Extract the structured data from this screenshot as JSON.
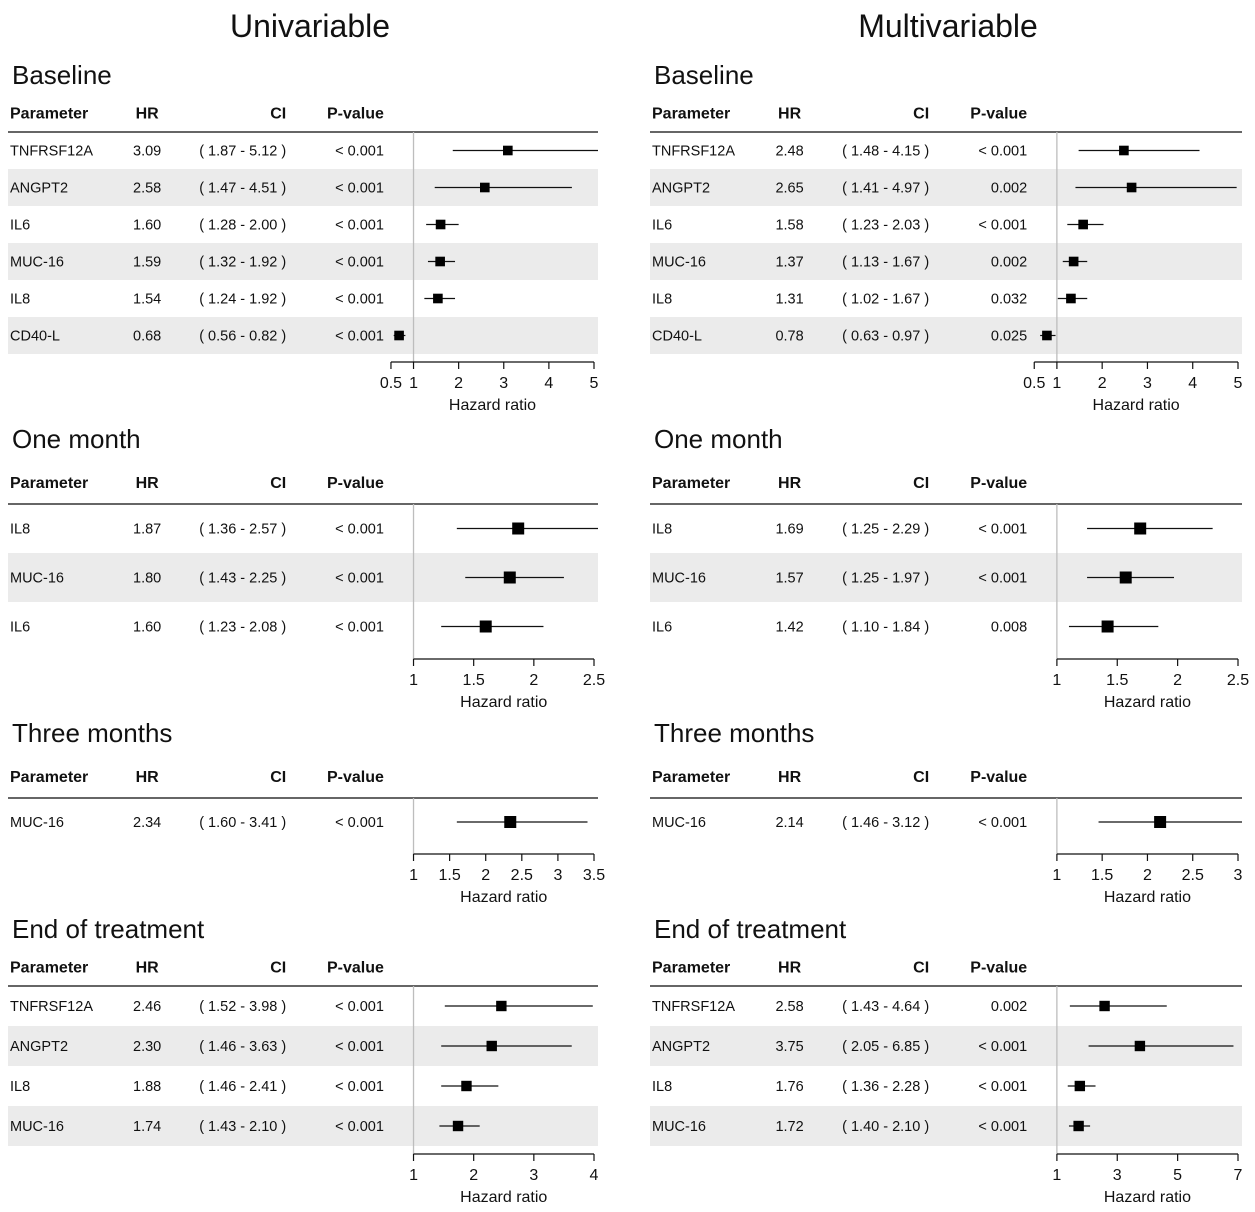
{
  "column_titles": [
    "Univariable",
    "Multivariable"
  ],
  "headers": {
    "parameter": "Parameter",
    "hr": "HR",
    "ci": "CI",
    "p": "P-value"
  },
  "axis_label": "Hazard ratio",
  "chart_data": [
    {
      "type": "forest",
      "model": "Univariable",
      "timepoint": "Baseline",
      "xlabel": "Hazard ratio",
      "ref": 1,
      "xticks": [
        0.5,
        1,
        2,
        3,
        4,
        5
      ],
      "xtick_labels": [
        "0.5",
        "1",
        "2",
        "3",
        "4",
        "5"
      ],
      "rows": [
        {
          "parameter": "TNFRSF12A",
          "hr": 3.09,
          "lo": 1.87,
          "hi": 5.12,
          "hr_text": "3.09",
          "ci_text": "( 1.87 - 5.12 )",
          "p": "< 0.001"
        },
        {
          "parameter": "ANGPT2",
          "hr": 2.58,
          "lo": 1.47,
          "hi": 4.51,
          "hr_text": "2.58",
          "ci_text": "( 1.47 - 4.51 )",
          "p": "< 0.001"
        },
        {
          "parameter": "IL6",
          "hr": 1.6,
          "lo": 1.28,
          "hi": 2.0,
          "hr_text": "1.60",
          "ci_text": "( 1.28 - 2.00 )",
          "p": "< 0.001"
        },
        {
          "parameter": "MUC-16",
          "hr": 1.59,
          "lo": 1.32,
          "hi": 1.92,
          "hr_text": "1.59",
          "ci_text": "( 1.32 - 1.92 )",
          "p": "< 0.001"
        },
        {
          "parameter": "IL8",
          "hr": 1.54,
          "lo": 1.24,
          "hi": 1.92,
          "hr_text": "1.54",
          "ci_text": "( 1.24 - 1.92 )",
          "p": "< 0.001"
        },
        {
          "parameter": "CD40-L",
          "hr": 0.68,
          "lo": 0.56,
          "hi": 0.82,
          "hr_text": "0.68",
          "ci_text": "( 0.56 - 0.82 )",
          "p": "< 0.001"
        }
      ]
    },
    {
      "type": "forest",
      "model": "Multivariable",
      "timepoint": "Baseline",
      "xlabel": "Hazard ratio",
      "ref": 1,
      "xticks": [
        0.5,
        1,
        2,
        3,
        4,
        5
      ],
      "xtick_labels": [
        "0.5",
        "1",
        "2",
        "3",
        "4",
        "5"
      ],
      "rows": [
        {
          "parameter": "TNFRSF12A",
          "hr": 2.48,
          "lo": 1.48,
          "hi": 4.15,
          "hr_text": "2.48",
          "ci_text": "( 1.48 - 4.15 )",
          "p": "< 0.001"
        },
        {
          "parameter": "ANGPT2",
          "hr": 2.65,
          "lo": 1.41,
          "hi": 4.97,
          "hr_text": "2.65",
          "ci_text": "( 1.41 - 4.97 )",
          "p": "0.002"
        },
        {
          "parameter": "IL6",
          "hr": 1.58,
          "lo": 1.23,
          "hi": 2.03,
          "hr_text": "1.58",
          "ci_text": "( 1.23 - 2.03 )",
          "p": "< 0.001"
        },
        {
          "parameter": "MUC-16",
          "hr": 1.37,
          "lo": 1.13,
          "hi": 1.67,
          "hr_text": "1.37",
          "ci_text": "( 1.13 - 1.67 )",
          "p": "0.002"
        },
        {
          "parameter": "IL8",
          "hr": 1.31,
          "lo": 1.02,
          "hi": 1.67,
          "hr_text": "1.31",
          "ci_text": "( 1.02 - 1.67 )",
          "p": "0.032"
        },
        {
          "parameter": "CD40-L",
          "hr": 0.78,
          "lo": 0.63,
          "hi": 0.97,
          "hr_text": "0.78",
          "ci_text": "( 0.63 - 0.97 )",
          "p": "0.025"
        }
      ]
    },
    {
      "type": "forest",
      "model": "Univariable",
      "timepoint": "One month",
      "xlabel": "Hazard ratio",
      "ref": 1,
      "xticks": [
        1,
        1.5,
        2,
        2.5
      ],
      "xtick_labels": [
        "1",
        "1.5",
        "2",
        "2.5"
      ],
      "rows": [
        {
          "parameter": "IL8",
          "hr": 1.87,
          "lo": 1.36,
          "hi": 2.57,
          "hr_text": "1.87",
          "ci_text": "( 1.36 - 2.57 )",
          "p": "< 0.001"
        },
        {
          "parameter": "MUC-16",
          "hr": 1.8,
          "lo": 1.43,
          "hi": 2.25,
          "hr_text": "1.80",
          "ci_text": "( 1.43 - 2.25 )",
          "p": "< 0.001"
        },
        {
          "parameter": "IL6",
          "hr": 1.6,
          "lo": 1.23,
          "hi": 2.08,
          "hr_text": "1.60",
          "ci_text": "( 1.23 - 2.08 )",
          "p": "< 0.001"
        }
      ]
    },
    {
      "type": "forest",
      "model": "Multivariable",
      "timepoint": "One month",
      "xlabel": "Hazard ratio",
      "ref": 1,
      "xticks": [
        1,
        1.5,
        2,
        2.5
      ],
      "xtick_labels": [
        "1",
        "1.5",
        "2",
        "2.5"
      ],
      "rows": [
        {
          "parameter": "IL8",
          "hr": 1.69,
          "lo": 1.25,
          "hi": 2.29,
          "hr_text": "1.69",
          "ci_text": "( 1.25 - 2.29 )",
          "p": "< 0.001"
        },
        {
          "parameter": "MUC-16",
          "hr": 1.57,
          "lo": 1.25,
          "hi": 1.97,
          "hr_text": "1.57",
          "ci_text": "( 1.25 - 1.97 )",
          "p": "< 0.001"
        },
        {
          "parameter": "IL6",
          "hr": 1.42,
          "lo": 1.1,
          "hi": 1.84,
          "hr_text": "1.42",
          "ci_text": "( 1.10 - 1.84 )",
          "p": "0.008"
        }
      ]
    },
    {
      "type": "forest",
      "model": "Univariable",
      "timepoint": "Three months",
      "xlabel": "Hazard ratio",
      "ref": 1,
      "xticks": [
        1,
        1.5,
        2,
        2.5,
        3,
        3.5
      ],
      "xtick_labels": [
        "1",
        "1.5",
        "2",
        "2.5",
        "3",
        "3.5"
      ],
      "rows": [
        {
          "parameter": "MUC-16",
          "hr": 2.34,
          "lo": 1.6,
          "hi": 3.41,
          "hr_text": "2.34",
          "ci_text": "( 1.60 - 3.41 )",
          "p": "< 0.001"
        }
      ]
    },
    {
      "type": "forest",
      "model": "Multivariable",
      "timepoint": "Three months",
      "xlabel": "Hazard ratio",
      "ref": 1,
      "xticks": [
        1,
        1.5,
        2,
        2.5,
        3
      ],
      "xtick_labels": [
        "1",
        "1.5",
        "2",
        "2.5",
        "3"
      ],
      "rows": [
        {
          "parameter": "MUC-16",
          "hr": 2.14,
          "lo": 1.46,
          "hi": 3.12,
          "hr_text": "2.14",
          "ci_text": "( 1.46 - 3.12 )",
          "p": "< 0.001"
        }
      ]
    },
    {
      "type": "forest",
      "model": "Univariable",
      "timepoint": "End of treatment",
      "xlabel": "Hazard ratio",
      "ref": 1,
      "xticks": [
        1,
        2,
        3,
        4
      ],
      "xtick_labels": [
        "1",
        "2",
        "3",
        "4"
      ],
      "rows": [
        {
          "parameter": "TNFRSF12A",
          "hr": 2.46,
          "lo": 1.52,
          "hi": 3.98,
          "hr_text": "2.46",
          "ci_text": "( 1.52 - 3.98 )",
          "p": "< 0.001"
        },
        {
          "parameter": "ANGPT2",
          "hr": 2.3,
          "lo": 1.46,
          "hi": 3.63,
          "hr_text": "2.30",
          "ci_text": "( 1.46 - 3.63 )",
          "p": "< 0.001"
        },
        {
          "parameter": "IL8",
          "hr": 1.88,
          "lo": 1.46,
          "hi": 2.41,
          "hr_text": "1.88",
          "ci_text": "( 1.46 - 2.41 )",
          "p": "< 0.001"
        },
        {
          "parameter": "MUC-16",
          "hr": 1.74,
          "lo": 1.43,
          "hi": 2.1,
          "hr_text": "1.74",
          "ci_text": "( 1.43 - 2.10 )",
          "p": "< 0.001"
        }
      ]
    },
    {
      "type": "forest",
      "model": "Multivariable",
      "timepoint": "End of treatment",
      "xlabel": "Hazard ratio",
      "ref": 1,
      "xticks": [
        1,
        3,
        5,
        7
      ],
      "xtick_labels": [
        "1",
        "3",
        "5",
        "7"
      ],
      "rows": [
        {
          "parameter": "TNFRSF12A",
          "hr": 2.58,
          "lo": 1.43,
          "hi": 4.64,
          "hr_text": "2.58",
          "ci_text": "( 1.43 - 4.64 )",
          "p": "0.002"
        },
        {
          "parameter": "ANGPT2",
          "hr": 3.75,
          "lo": 2.05,
          "hi": 6.85,
          "hr_text": "3.75",
          "ci_text": "( 2.05 - 6.85 )",
          "p": "< 0.001"
        },
        {
          "parameter": "IL8",
          "hr": 1.76,
          "lo": 1.36,
          "hi": 2.28,
          "hr_text": "1.76",
          "ci_text": "( 1.36 - 2.28 )",
          "p": "< 0.001"
        },
        {
          "parameter": "MUC-16",
          "hr": 1.72,
          "lo": 1.4,
          "hi": 2.1,
          "hr_text": "1.72",
          "ci_text": "( 1.40 - 2.10 )",
          "p": "< 0.001"
        }
      ]
    }
  ]
}
